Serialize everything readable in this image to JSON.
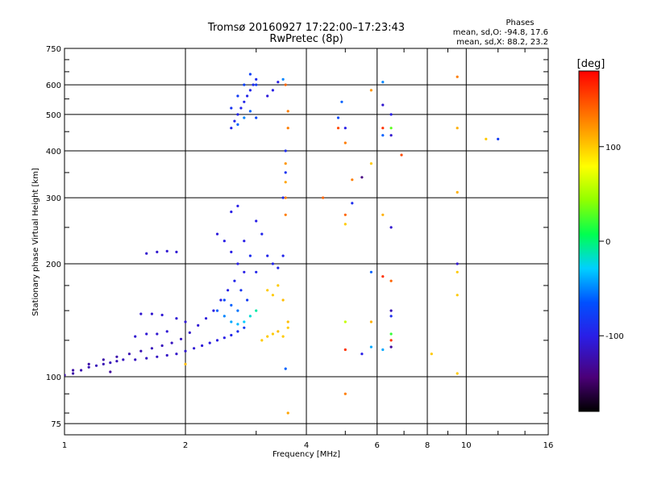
{
  "header": {
    "title_line1": "Tromsø 20160927 17:22:00–17:23:43",
    "title_line2": "RwPretec (8p)",
    "stats_title": "Phases",
    "stats_line1": "mean, sd,O: -94.8, 17.6",
    "stats_line2": "mean, sd,X:  88.2, 23.2"
  },
  "chart_data": {
    "type": "scatter",
    "title": "Tromsø 20160927 17:22:00–17:23:43",
    "subtitle": "RwPretec (8p)",
    "xlabel": "Frequency [MHz]",
    "ylabel": "Stationary phase Virtual Height [km]",
    "x_scale": "log",
    "y_scale": "log",
    "xlim": [
      1,
      16
    ],
    "ylim": [
      70,
      750
    ],
    "x_ticks": [
      1,
      2,
      4,
      6,
      8,
      10,
      16
    ],
    "x_tick_labels": [
      "1",
      "2",
      "4",
      "6",
      "8",
      "10",
      "16"
    ],
    "y_ticks": [
      75,
      100,
      200,
      300,
      400,
      500,
      600,
      750
    ],
    "y_tick_labels": [
      "75",
      "100",
      "200",
      "300",
      "400",
      "500",
      "600",
      "750"
    ],
    "grid": true,
    "colorbar": {
      "label": "[deg]",
      "range": [
        -180,
        180
      ],
      "ticks": [
        100,
        0,
        -100
      ],
      "tick_labels": [
        "100",
        "0",
        "-100"
      ],
      "colormap": "rainbow"
    },
    "series": [
      {
        "points": [
          [
            1.0,
            101,
            -125
          ],
          [
            1.05,
            102,
            -125
          ],
          [
            1.1,
            104,
            -122
          ],
          [
            1.15,
            106,
            -120
          ],
          [
            1.2,
            107,
            -118
          ],
          [
            1.25,
            108,
            -120
          ],
          [
            1.3,
            109,
            -118
          ],
          [
            1.35,
            110,
            -118
          ],
          [
            1.4,
            111,
            -116
          ],
          [
            1.5,
            111,
            -116
          ],
          [
            1.6,
            112,
            -115
          ],
          [
            1.7,
            113,
            -115
          ],
          [
            1.8,
            114,
            -113
          ],
          [
            1.9,
            115,
            -112
          ],
          [
            2.0,
            117,
            -110
          ],
          [
            2.1,
            119,
            -108
          ],
          [
            2.2,
            121,
            -106
          ],
          [
            2.3,
            123,
            -104
          ],
          [
            2.4,
            125,
            -102
          ],
          [
            2.5,
            127,
            -100
          ],
          [
            2.6,
            129,
            -95
          ],
          [
            2.7,
            132,
            -90
          ],
          [
            2.8,
            135,
            -80
          ],
          [
            1.05,
            104,
            -125
          ],
          [
            1.15,
            108,
            -125
          ],
          [
            1.25,
            111,
            -125
          ],
          [
            1.35,
            113,
            -123
          ],
          [
            1.45,
            115,
            -122
          ],
          [
            1.55,
            117,
            -120
          ],
          [
            1.65,
            119,
            -118
          ],
          [
            1.75,
            121,
            -117
          ],
          [
            1.85,
            123,
            -116
          ],
          [
            1.95,
            126,
            -115
          ],
          [
            2.05,
            131,
            -112
          ],
          [
            2.15,
            137,
            -108
          ],
          [
            2.25,
            143,
            -105
          ],
          [
            2.35,
            150,
            -102
          ],
          [
            2.45,
            160,
            -100
          ],
          [
            2.55,
            170,
            -98
          ],
          [
            2.65,
            180,
            -95
          ],
          [
            2.75,
            170,
            -85
          ],
          [
            2.85,
            160,
            -80
          ],
          [
            1.5,
            128,
            -110
          ],
          [
            1.6,
            130,
            -108
          ],
          [
            1.7,
            130,
            -110
          ],
          [
            1.8,
            132,
            -108
          ],
          [
            1.55,
            147,
            -110
          ],
          [
            1.65,
            147,
            -110
          ],
          [
            1.75,
            146,
            -108
          ],
          [
            1.9,
            143,
            -108
          ],
          [
            2.0,
            140,
            -108
          ],
          [
            1.6,
            213,
            -110
          ],
          [
            1.7,
            215,
            -110
          ],
          [
            1.8,
            216,
            -108
          ],
          [
            1.9,
            215,
            -108
          ],
          [
            2.4,
            240,
            -105
          ],
          [
            2.5,
            230,
            -100
          ],
          [
            2.6,
            215,
            -100
          ],
          [
            2.7,
            200,
            -100
          ],
          [
            2.8,
            190,
            -100
          ],
          [
            2.6,
            275,
            -100
          ],
          [
            2.7,
            285,
            -100
          ],
          [
            2.8,
            230,
            -100
          ],
          [
            2.9,
            210,
            -90
          ],
          [
            3.0,
            190,
            -95
          ],
          [
            3.0,
            260,
            -100
          ],
          [
            3.1,
            240,
            -95
          ],
          [
            3.2,
            210,
            -95
          ],
          [
            3.3,
            200,
            -95
          ],
          [
            3.4,
            195,
            -95
          ],
          [
            3.5,
            210,
            -95
          ],
          [
            3.5,
            300,
            -90
          ],
          [
            3.55,
            400,
            -90
          ],
          [
            3.55,
            350,
            -85
          ],
          [
            2.4,
            150,
            -60
          ],
          [
            2.5,
            145,
            -50
          ],
          [
            2.6,
            140,
            -40
          ],
          [
            2.7,
            138,
            -35
          ],
          [
            2.8,
            140,
            -30
          ],
          [
            2.9,
            145,
            -20
          ],
          [
            3.0,
            150,
            -10
          ],
          [
            2.5,
            160,
            -70
          ],
          [
            2.6,
            155,
            -60
          ],
          [
            2.7,
            150,
            -55
          ],
          [
            3.2,
            170,
            100
          ],
          [
            3.3,
            165,
            100
          ],
          [
            3.4,
            175,
            100
          ],
          [
            3.5,
            160,
            105
          ],
          [
            3.1,
            125,
            100
          ],
          [
            3.2,
            128,
            100
          ],
          [
            3.3,
            130,
            100
          ],
          [
            3.4,
            132,
            105
          ],
          [
            3.5,
            128,
            100
          ],
          [
            3.6,
            140,
            105
          ],
          [
            3.6,
            135,
            100
          ],
          [
            3.55,
            370,
            120
          ],
          [
            3.55,
            330,
            115
          ],
          [
            3.55,
            300,
            130
          ],
          [
            3.55,
            270,
            130
          ],
          [
            2.6,
            460,
            -95
          ],
          [
            2.65,
            480,
            -95
          ],
          [
            2.7,
            500,
            -95
          ],
          [
            2.75,
            520,
            -95
          ],
          [
            2.8,
            540,
            -95
          ],
          [
            2.85,
            560,
            -95
          ],
          [
            2.9,
            580,
            -95
          ],
          [
            2.95,
            600,
            -90
          ],
          [
            3.0,
            620,
            -90
          ],
          [
            2.6,
            520,
            -85
          ],
          [
            2.7,
            560,
            -80
          ],
          [
            2.8,
            600,
            -75
          ],
          [
            2.9,
            640,
            -75
          ],
          [
            3.0,
            600,
            -80
          ],
          [
            2.7,
            470,
            -60
          ],
          [
            2.8,
            490,
            -50
          ],
          [
            2.9,
            510,
            -60
          ],
          [
            3.0,
            490,
            -70
          ],
          [
            3.2,
            560,
            -105
          ],
          [
            3.3,
            580,
            -100
          ],
          [
            3.4,
            610,
            -100
          ],
          [
            3.5,
            620,
            -50
          ],
          [
            3.55,
            600,
            140
          ],
          [
            3.6,
            510,
            130
          ],
          [
            3.6,
            460,
            130
          ],
          [
            3.6,
            80,
            115
          ],
          [
            3.55,
            105,
            -60
          ],
          [
            2.0,
            108,
            105
          ],
          [
            1.3,
            103,
            -130
          ],
          [
            4.4,
            300,
            140
          ],
          [
            4.8,
            460,
            150
          ],
          [
            4.8,
            490,
            -70
          ],
          [
            4.9,
            540,
            -60
          ],
          [
            5.0,
            460,
            -100
          ],
          [
            5.0,
            420,
            130
          ],
          [
            5.0,
            270,
            140
          ],
          [
            5.0,
            255,
            100
          ],
          [
            5.0,
            90,
            130
          ],
          [
            5.0,
            140,
            60
          ],
          [
            5.0,
            118,
            160
          ],
          [
            5.2,
            335,
            130
          ],
          [
            5.2,
            290,
            -90
          ],
          [
            5.5,
            340,
            -140
          ],
          [
            5.5,
            115,
            -100
          ],
          [
            5.8,
            580,
            120
          ],
          [
            5.8,
            370,
            100
          ],
          [
            5.8,
            190,
            -60
          ],
          [
            5.8,
            140,
            110
          ],
          [
            5.8,
            120,
            -40
          ],
          [
            6.2,
            610,
            -50
          ],
          [
            6.2,
            530,
            -110
          ],
          [
            6.2,
            460,
            160
          ],
          [
            6.2,
            440,
            -60
          ],
          [
            6.2,
            270,
            110
          ],
          [
            6.2,
            185,
            160
          ],
          [
            6.2,
            118,
            -40
          ],
          [
            6.5,
            500,
            -100
          ],
          [
            6.5,
            460,
            30
          ],
          [
            6.5,
            440,
            -110
          ],
          [
            6.5,
            250,
            -110
          ],
          [
            6.5,
            180,
            140
          ],
          [
            6.5,
            150,
            -120
          ],
          [
            6.5,
            145,
            -90
          ],
          [
            6.5,
            130,
            20
          ],
          [
            6.5,
            125,
            160
          ],
          [
            6.5,
            120,
            -130
          ],
          [
            6.9,
            390,
            150
          ],
          [
            8.2,
            115,
            100
          ],
          [
            9.5,
            630,
            130
          ],
          [
            9.5,
            460,
            110
          ],
          [
            9.5,
            310,
            110
          ],
          [
            9.5,
            200,
            -110
          ],
          [
            9.5,
            190,
            100
          ],
          [
            9.5,
            165,
            100
          ],
          [
            9.5,
            102,
            100
          ],
          [
            11.2,
            430,
            100
          ],
          [
            12.0,
            430,
            -80
          ]
        ]
      }
    ]
  }
}
